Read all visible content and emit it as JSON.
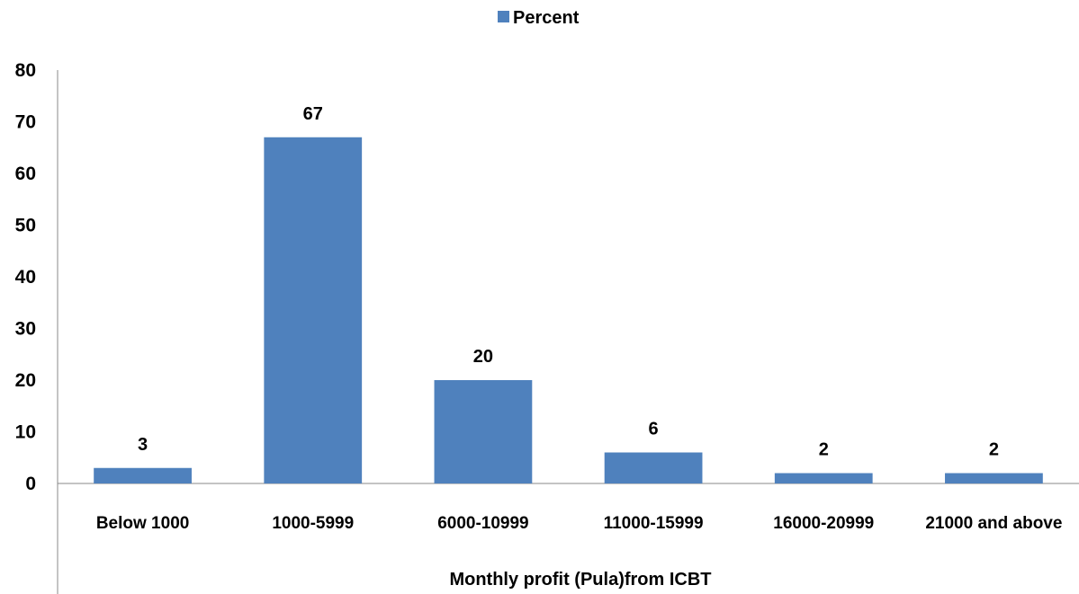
{
  "chart_data": {
    "type": "bar",
    "categories": [
      "Below 1000",
      "1000-5999",
      "6000-10999",
      "11000-15999",
      "16000-20999",
      "21000 and above"
    ],
    "series": [
      {
        "name": "Percent",
        "values": [
          3,
          67,
          20,
          6,
          2,
          2
        ],
        "color": "#4F81BD"
      }
    ],
    "data_labels": [
      "3",
      "67",
      "20",
      "6",
      "2",
      "2"
    ],
    "title": "",
    "xlabel": "Monthly profit (Pula)from ICBT",
    "ylabel": "",
    "ylim": [
      0,
      80
    ],
    "yticks": [
      "0",
      "10",
      "20",
      "30",
      "40",
      "50",
      "60",
      "70",
      "80"
    ],
    "grid": false,
    "legend_position": "top-center"
  }
}
